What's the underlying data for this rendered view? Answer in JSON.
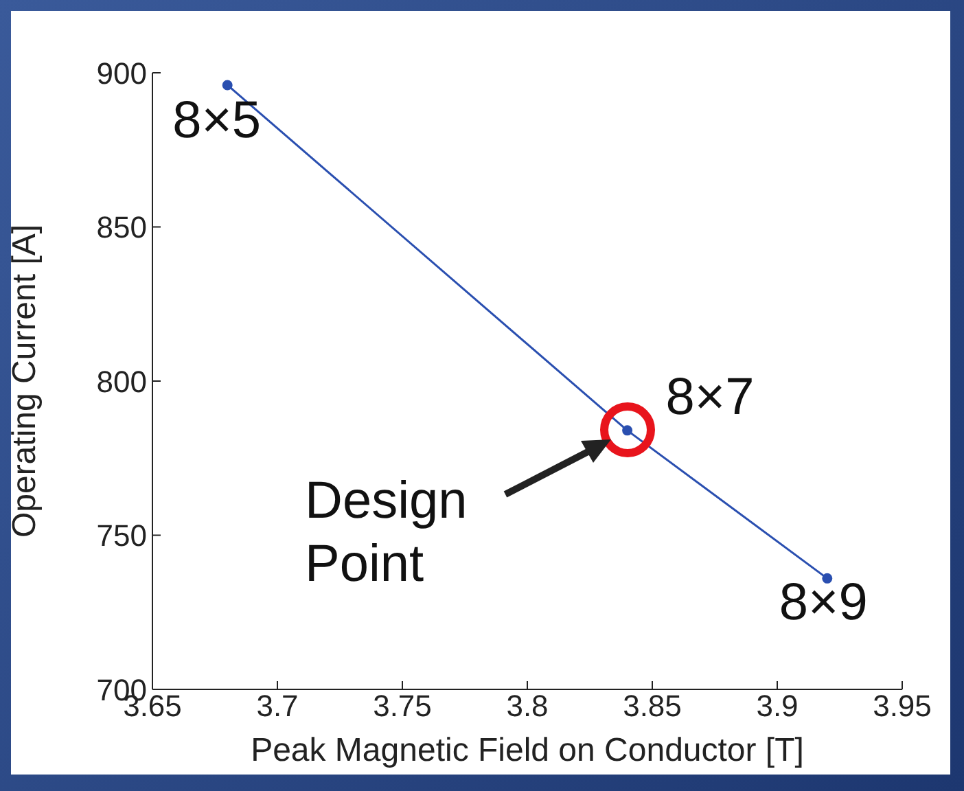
{
  "chart_data": {
    "type": "line",
    "xlabel": "Peak Magnetic Field on Conductor [T]",
    "ylabel": "Operating Current [A]",
    "x": [
      3.68,
      3.84,
      3.92
    ],
    "series": [
      {
        "color": "#2a4fb0",
        "values": [
          896,
          784,
          736
        ]
      }
    ],
    "xlim": [
      3.65,
      3.95
    ],
    "xticks": [
      3.65,
      3.7,
      3.75,
      3.8,
      3.85,
      3.9,
      3.95
    ],
    "ylim": [
      700,
      900
    ],
    "yticks": [
      700,
      750,
      800,
      850,
      900
    ],
    "grid": false,
    "legend": false,
    "marker": "circle",
    "line_style": "solid",
    "annotations": [
      {
        "text": "8×5",
        "x": 3.68,
        "y": 896
      },
      {
        "text": "8×7",
        "x": 3.84,
        "y": 784
      },
      {
        "text": "8×9",
        "x": 3.92,
        "y": 736
      },
      "Design Point"
    ]
  }
}
